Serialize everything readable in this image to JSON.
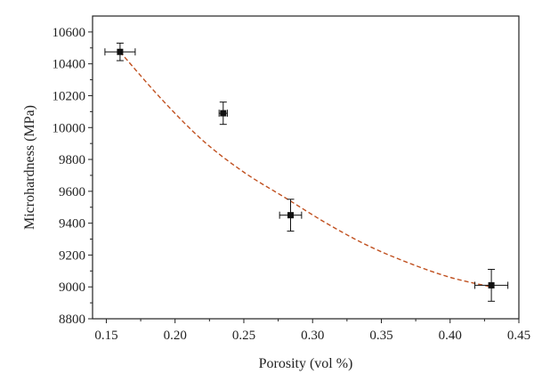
{
  "chart_data": {
    "type": "scatter",
    "xlabel": "Porosity (vol %)",
    "ylabel": "Microhardness (MPa)",
    "xlim": [
      0.14,
      0.45
    ],
    "ylim": [
      8800,
      10700
    ],
    "x_ticks": [
      0.15,
      0.2,
      0.25,
      0.3,
      0.35,
      0.4,
      0.45
    ],
    "x_tick_labels": [
      "0.15",
      "0.20",
      "0.25",
      "0.30",
      "0.35",
      "0.40",
      "0.45"
    ],
    "y_ticks": [
      8800,
      9000,
      9200,
      9400,
      9600,
      9800,
      10000,
      10200,
      10400,
      10600
    ],
    "y_tick_labels": [
      "8800",
      "9000",
      "9200",
      "9400",
      "9600",
      "9800",
      "10000",
      "10200",
      "10400",
      "10600"
    ],
    "grid": false,
    "series": [
      {
        "marker": "square",
        "color": "#111111",
        "x": [
          0.16,
          0.235,
          0.284,
          0.43
        ],
        "y": [
          10475,
          10090,
          9450,
          9010
        ],
        "x_error": [
          0.011,
          0.003,
          0.008,
          0.012
        ],
        "y_error": [
          55,
          70,
          100,
          100
        ]
      }
    ],
    "fit_curve": {
      "style": "dashed",
      "color": "#c0501f",
      "x": [
        0.16,
        0.19,
        0.22,
        0.25,
        0.28,
        0.31,
        0.34,
        0.37,
        0.4,
        0.43
      ],
      "y": [
        10475,
        10180,
        9920,
        9720,
        9560,
        9400,
        9260,
        9150,
        9060,
        9000
      ]
    }
  }
}
